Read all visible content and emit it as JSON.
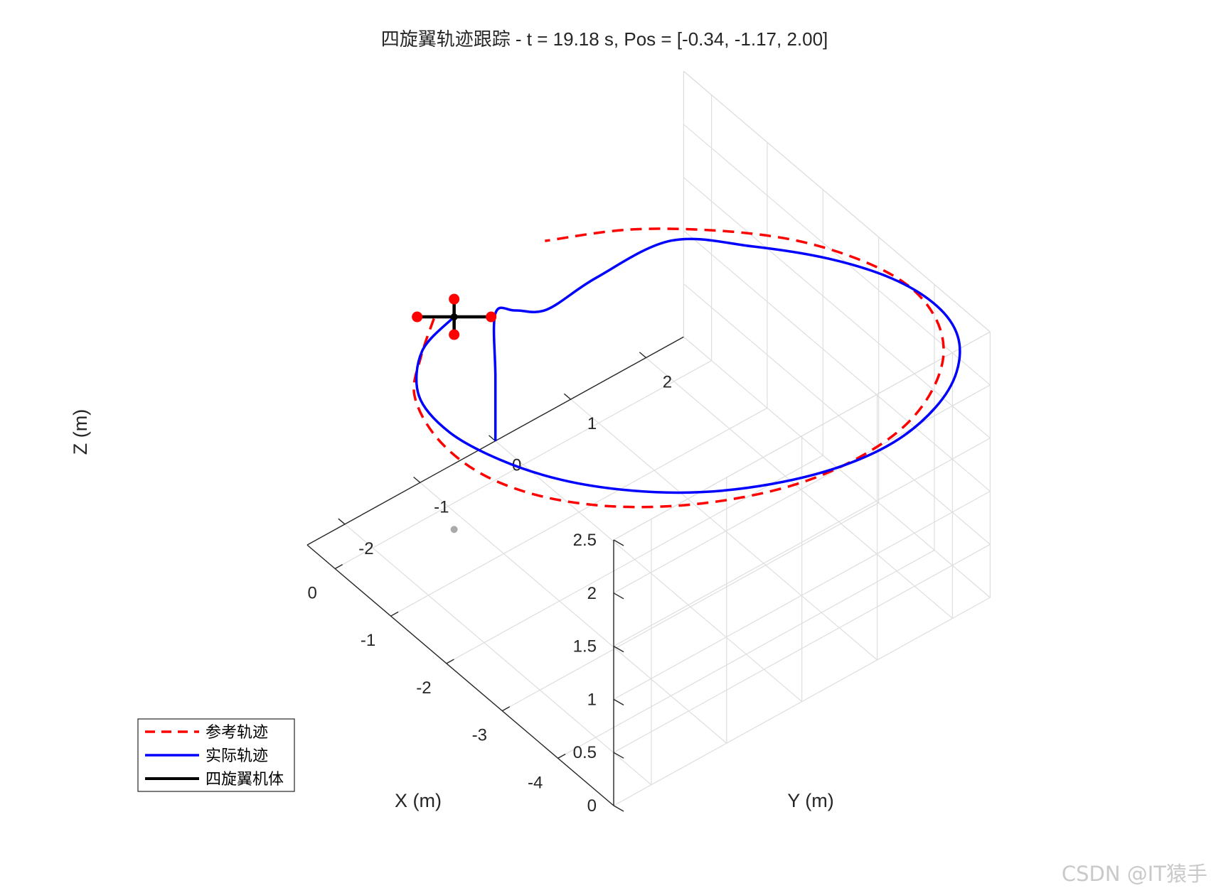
{
  "chart_data": {
    "type": "line3d",
    "title": "四旋翼轨迹跟踪 - t = 19.18 s, Pos = [-0.34, -1.17, 2.00]",
    "xlabel": "X (m)",
    "ylabel": "Y (m)",
    "zlabel": "Z (m)",
    "xlim": [
      -5,
      0.5
    ],
    "ylim": [
      -2.5,
      2.5
    ],
    "zlim": [
      0,
      2.5
    ],
    "x_ticks": [
      -4,
      -3,
      -2,
      -1,
      0
    ],
    "y_ticks": [
      -2,
      -1,
      0,
      1,
      2
    ],
    "z_ticks": [
      0,
      0.5,
      1,
      1.5,
      2,
      2.5
    ],
    "x_tick_labels": [
      "-4",
      "-3",
      "-2",
      "-1",
      "0"
    ],
    "y_tick_labels": [
      "-2",
      "-1",
      "0",
      "1",
      "2"
    ],
    "z_tick_labels": [
      "0",
      "0.5",
      "1",
      "1.5",
      "2",
      "2.5"
    ],
    "grid": true,
    "view": "isometric",
    "legend_position": "bottom-left",
    "series": [
      {
        "name": "参考轨迹",
        "style": "dashed",
        "color": "#ff0000",
        "x": [
          -0.22,
          -0.62,
          -1.06,
          -1.74,
          -2.46,
          -3.13,
          -3.74,
          -4.26,
          -4.66,
          -4.92,
          -5.0,
          -4.92,
          -4.66,
          -4.26,
          -3.74,
          -3.13,
          -2.46,
          -1.74,
          -1.06,
          -0.45,
          -0.01
        ],
        "y": [
          -1.35,
          -1.82,
          -2.23,
          -2.45,
          -2.45,
          -2.23,
          -1.82,
          -1.26,
          -0.61,
          0.08,
          0.77,
          1.42,
          1.98,
          2.43,
          2.7,
          2.78,
          2.63,
          2.28,
          1.73,
          1.05,
          0.28
        ],
        "z": [
          2.0,
          2.0,
          2.0,
          2.0,
          2.0,
          2.0,
          2.0,
          2.0,
          2.0,
          2.0,
          2.0,
          2.0,
          2.0,
          2.0,
          2.0,
          2.0,
          2.0,
          2.0,
          2.0,
          2.0,
          2.0
        ]
      },
      {
        "name": "实际轨迹",
        "style": "solid",
        "color": "#0000ff",
        "x": [
          0.5,
          0.5,
          0.5,
          0.3,
          0.05,
          -0.3,
          -0.9,
          -1.55,
          -2.25,
          -2.95,
          -3.6,
          -4.15,
          -4.6,
          -4.9,
          -5.05,
          -4.98,
          -4.72,
          -4.32,
          -3.8,
          -3.18,
          -2.5,
          -1.78,
          -1.1,
          -0.55,
          -0.34
        ],
        "y": [
          0.0,
          0.0,
          0.0,
          0.12,
          0.35,
          0.75,
          1.3,
          1.9,
          2.4,
          2.72,
          2.82,
          2.7,
          2.35,
          1.85,
          1.2,
          0.5,
          -0.2,
          -0.85,
          -1.4,
          -1.85,
          -2.15,
          -2.3,
          -2.2,
          -1.75,
          -1.17
        ],
        "z": [
          0.0,
          0.6,
          1.2,
          1.27,
          1.3,
          1.6,
          2.0,
          2.0,
          2.0,
          2.0,
          2.0,
          2.0,
          2.0,
          2.0,
          2.0,
          2.0,
          2.0,
          2.0,
          2.0,
          2.0,
          2.0,
          2.0,
          2.0,
          2.0,
          2.0
        ]
      },
      {
        "name": "四旋翼机体",
        "style": "solid",
        "color": "#000000",
        "center": [
          -0.34,
          -1.17,
          2.0
        ],
        "arm_length": 0.3
      }
    ],
    "ground_marker": {
      "color": "#aaaaaa",
      "x": -0.34,
      "y": -1.17,
      "z": 0
    }
  },
  "legend": [
    {
      "label": "参考轨迹",
      "style": "dashed",
      "color": "#ff0000"
    },
    {
      "label": "实际轨迹",
      "style": "solid",
      "color": "#0000ff"
    },
    {
      "label": "四旋翼机体",
      "style": "solid",
      "color": "#000000"
    }
  ],
  "watermark": "CSDN @IT猿手"
}
